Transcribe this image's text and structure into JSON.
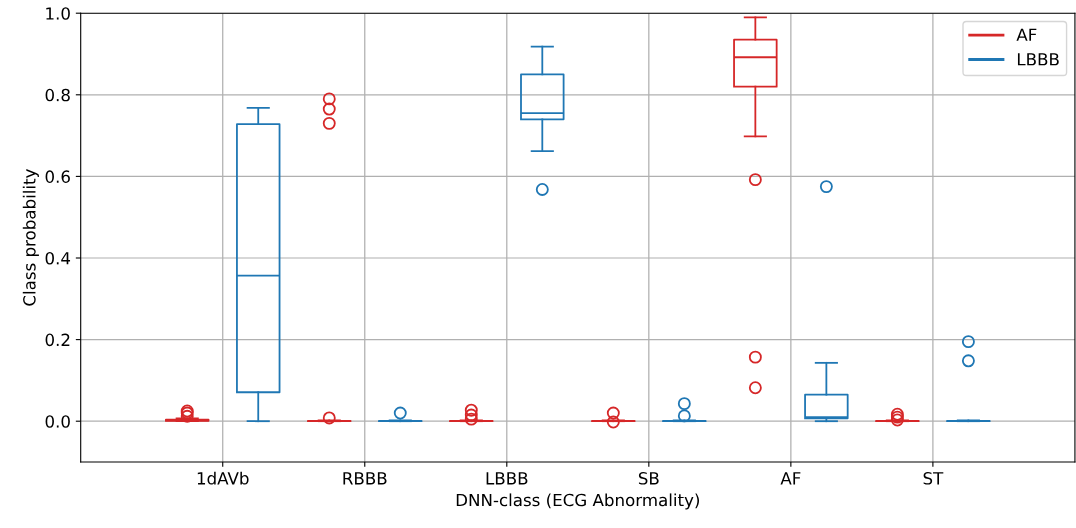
{
  "chart_data": {
    "type": "box",
    "xlabel": "DNN-class (ECG Abnormality)",
    "ylabel": "Class probability",
    "categories": [
      "1dAVb",
      "RBBB",
      "LBBB",
      "SB",
      "AF",
      "ST"
    ],
    "ylim": [
      -0.1,
      1.0
    ],
    "yticks": [
      {
        "value": 0,
        "label": "0.0"
      },
      {
        "value": 0.2,
        "label": "0.2"
      },
      {
        "value": 0.4,
        "label": "0.4"
      },
      {
        "value": 0.6,
        "label": "0.6"
      },
      {
        "value": 0.8,
        "label": "0.8"
      },
      {
        "value": 1.0,
        "label": "1.0"
      }
    ],
    "grid": true,
    "legend": "top right",
    "marker": "circle",
    "series": [
      {
        "name": "AF",
        "color": "#d62728",
        "boxes": [
          {
            "low": 0,
            "q1": 0.001,
            "median": 0.002,
            "q3": 0.004,
            "high": 0.007,
            "outliers": [
              0.012,
              0.02,
              0.025
            ]
          },
          {
            "low": 0,
            "q1": 0,
            "median": 0,
            "q3": 0.001,
            "high": 0.002,
            "outliers": [
              0.008,
              0.73,
              0.765,
              0.79
            ]
          },
          {
            "low": 0,
            "q1": 0,
            "median": 0,
            "q3": 0.001,
            "high": 0.002,
            "outliers": [
              0.005,
              0.015,
              0.027
            ]
          },
          {
            "low": 0,
            "q1": 0,
            "median": 0,
            "q3": 0.001,
            "high": 0.002,
            "outliers": [
              -0.002,
              0.02
            ]
          },
          {
            "low": 0.698,
            "q1": 0.82,
            "median": 0.892,
            "q3": 0.935,
            "high": 0.99,
            "outliers": [
              0.592,
              0.157,
              0.082
            ]
          },
          {
            "low": 0,
            "q1": 0,
            "median": 0,
            "q3": 0.001,
            "high": 0.002,
            "outliers": [
              0.003,
              0.01,
              0.017
            ]
          }
        ]
      },
      {
        "name": "LBBB",
        "color": "#1f77b4",
        "boxes": [
          {
            "low": 0,
            "q1": 0.071,
            "median": 0.357,
            "q3": 0.728,
            "high": 0.768
          },
          {
            "low": 0,
            "q1": 0,
            "median": 0,
            "q3": 0.001,
            "high": 0.002,
            "outliers": [
              0.02
            ]
          },
          {
            "low": 0.662,
            "q1": 0.74,
            "median": 0.755,
            "q3": 0.85,
            "high": 0.918,
            "outliers": [
              0.568
            ]
          },
          {
            "low": 0,
            "q1": 0,
            "median": 0,
            "q3": 0.001,
            "high": 0.002,
            "outliers": [
              0.013,
              0.043
            ]
          },
          {
            "low": 0,
            "q1": 0.007,
            "median": 0.01,
            "q3": 0.065,
            "high": 0.143,
            "outliers": [
              0.575
            ]
          },
          {
            "low": 0,
            "q1": 0,
            "median": 0,
            "q3": 0.001,
            "high": 0.002,
            "outliers": [
              0.148,
              0.195
            ]
          }
        ]
      }
    ]
  }
}
